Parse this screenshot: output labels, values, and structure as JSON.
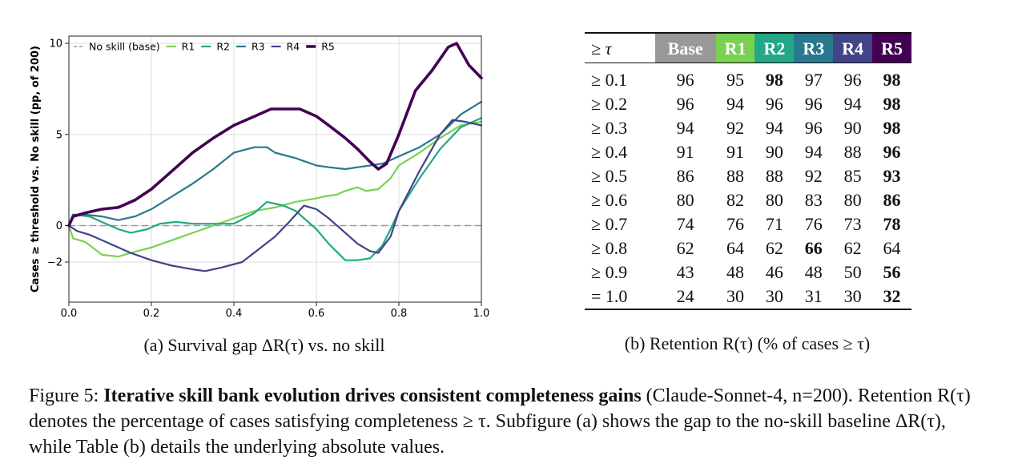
{
  "chart_data": {
    "type": "line",
    "title": "",
    "xlabel": "",
    "ylabel": "Cases ≥ threshold vs. No skill (pp, of 200)",
    "xlim": [
      0.0,
      1.0
    ],
    "ylim": [
      -4.2,
      10.4
    ],
    "xticks": [
      "0.0",
      "0.2",
      "0.4",
      "0.6",
      "0.8",
      "1.0"
    ],
    "xtick_values": [
      0.0,
      0.2,
      0.4,
      0.6,
      0.8,
      1.0
    ],
    "yticks": [
      "−2",
      "0",
      "5",
      "10"
    ],
    "ytick_values": [
      -2,
      0,
      5,
      10
    ],
    "grid": true,
    "legend_position": "top",
    "baseline": {
      "name": "No skill (base)",
      "value": 0,
      "color": "#999999"
    },
    "series": [
      {
        "name": "R1",
        "color": "#7ad151",
        "x": [
          0.0,
          0.01,
          0.04,
          0.08,
          0.12,
          0.15,
          0.2,
          0.25,
          0.3,
          0.35,
          0.4,
          0.45,
          0.5,
          0.55,
          0.6,
          0.62,
          0.65,
          0.67,
          0.7,
          0.72,
          0.75,
          0.78,
          0.8,
          0.85,
          0.9,
          0.95,
          1.0
        ],
        "y": [
          0.0,
          -0.7,
          -0.9,
          -1.6,
          -1.7,
          -1.5,
          -1.2,
          -0.8,
          -0.4,
          0.0,
          0.4,
          0.8,
          1.0,
          1.3,
          1.5,
          1.6,
          1.7,
          1.9,
          2.1,
          1.9,
          2.0,
          2.6,
          3.3,
          4.0,
          4.8,
          5.5,
          5.7
        ]
      },
      {
        "name": "R2",
        "color": "#22a884",
        "x": [
          0.0,
          0.01,
          0.05,
          0.09,
          0.12,
          0.15,
          0.19,
          0.22,
          0.26,
          0.3,
          0.35,
          0.4,
          0.45,
          0.48,
          0.52,
          0.55,
          0.6,
          0.63,
          0.67,
          0.7,
          0.73,
          0.76,
          0.78,
          0.8,
          0.85,
          0.9,
          0.95,
          1.0
        ],
        "y": [
          0.0,
          0.6,
          0.5,
          0.1,
          -0.2,
          -0.4,
          -0.2,
          0.1,
          0.2,
          0.1,
          0.1,
          0.1,
          0.7,
          1.3,
          1.1,
          0.8,
          -0.2,
          -1.0,
          -1.9,
          -1.9,
          -1.8,
          -1.1,
          -0.2,
          0.8,
          2.6,
          4.2,
          5.4,
          5.9
        ]
      },
      {
        "name": "R3",
        "color": "#2a788e",
        "x": [
          0.0,
          0.01,
          0.04,
          0.08,
          0.12,
          0.16,
          0.2,
          0.25,
          0.3,
          0.35,
          0.4,
          0.45,
          0.48,
          0.5,
          0.55,
          0.6,
          0.63,
          0.67,
          0.7,
          0.73,
          0.76,
          0.8,
          0.85,
          0.9,
          0.95,
          1.0
        ],
        "y": [
          0.0,
          0.6,
          0.6,
          0.5,
          0.3,
          0.5,
          0.9,
          1.6,
          2.3,
          3.1,
          4.0,
          4.3,
          4.3,
          4.0,
          3.7,
          3.3,
          3.2,
          3.1,
          3.2,
          3.3,
          3.4,
          3.8,
          4.3,
          5.0,
          6.1,
          6.8
        ]
      },
      {
        "name": "R4",
        "color": "#414487",
        "x": [
          0.0,
          0.02,
          0.05,
          0.1,
          0.15,
          0.2,
          0.25,
          0.3,
          0.33,
          0.37,
          0.42,
          0.46,
          0.5,
          0.53,
          0.57,
          0.6,
          0.63,
          0.67,
          0.7,
          0.73,
          0.75,
          0.78,
          0.8,
          0.85,
          0.9,
          0.93,
          0.96,
          1.0
        ],
        "y": [
          0.0,
          -0.3,
          -0.5,
          -1.0,
          -1.5,
          -1.9,
          -2.2,
          -2.4,
          -2.5,
          -2.3,
          -2.0,
          -1.3,
          -0.6,
          0.1,
          1.1,
          0.9,
          0.4,
          -0.4,
          -1.0,
          -1.4,
          -1.5,
          -0.6,
          0.8,
          3.0,
          5.0,
          5.8,
          5.7,
          5.5
        ]
      },
      {
        "name": "R5",
        "color": "#440154",
        "x": [
          0.0,
          0.01,
          0.04,
          0.08,
          0.12,
          0.16,
          0.2,
          0.25,
          0.3,
          0.35,
          0.4,
          0.45,
          0.49,
          0.52,
          0.56,
          0.6,
          0.63,
          0.67,
          0.7,
          0.73,
          0.75,
          0.77,
          0.8,
          0.84,
          0.88,
          0.92,
          0.94,
          0.97,
          1.0
        ],
        "y": [
          0.0,
          0.5,
          0.7,
          0.9,
          1.0,
          1.4,
          2.0,
          3.0,
          4.0,
          4.8,
          5.5,
          6.0,
          6.4,
          6.4,
          6.4,
          6.0,
          5.5,
          4.8,
          4.2,
          3.5,
          3.1,
          3.4,
          5.0,
          7.4,
          8.5,
          9.8,
          10.0,
          8.8,
          8.1
        ]
      }
    ]
  },
  "table": {
    "columns": [
      "≥ τ",
      "Base",
      "R1",
      "R2",
      "R3",
      "R4",
      "R5"
    ],
    "header_colors": [
      "#ffffff",
      "#999999",
      "#7ad151",
      "#22a884",
      "#2a788e",
      "#414487",
      "#440154"
    ],
    "rows": [
      {
        "tau": "≥ 0.1",
        "vals": [
          "96",
          "95",
          "98",
          "97",
          "96",
          "98"
        ],
        "bold": [
          2,
          5
        ]
      },
      {
        "tau": "≥ 0.2",
        "vals": [
          "96",
          "94",
          "96",
          "96",
          "94",
          "98"
        ],
        "bold": [
          5
        ]
      },
      {
        "tau": "≥ 0.3",
        "vals": [
          "94",
          "92",
          "94",
          "96",
          "90",
          "98"
        ],
        "bold": [
          5
        ]
      },
      {
        "tau": "≥ 0.4",
        "vals": [
          "91",
          "91",
          "90",
          "94",
          "88",
          "96"
        ],
        "bold": [
          5
        ]
      },
      {
        "tau": "≥ 0.5",
        "vals": [
          "86",
          "88",
          "88",
          "92",
          "85",
          "93"
        ],
        "bold": [
          5
        ]
      },
      {
        "tau": "≥ 0.6",
        "vals": [
          "80",
          "82",
          "80",
          "83",
          "80",
          "86"
        ],
        "bold": [
          5
        ]
      },
      {
        "tau": "≥ 0.7",
        "vals": [
          "74",
          "76",
          "71",
          "76",
          "73",
          "78"
        ],
        "bold": [
          5
        ]
      },
      {
        "tau": "≥ 0.8",
        "vals": [
          "62",
          "64",
          "62",
          "66",
          "62",
          "64"
        ],
        "bold": [
          3
        ]
      },
      {
        "tau": "≥ 0.9",
        "vals": [
          "43",
          "48",
          "46",
          "48",
          "50",
          "56"
        ],
        "bold": [
          5
        ]
      },
      {
        "tau": "= 1.0",
        "vals": [
          "24",
          "30",
          "30",
          "31",
          "30",
          "32"
        ],
        "bold": [
          5
        ]
      }
    ]
  },
  "captions": {
    "a": "(a) Survival gap ΔR(τ) vs. no skill",
    "b": "(b) Retention R(τ) (% of cases ≥ τ)"
  },
  "figure_caption": {
    "label": "Figure 5:",
    "bold": "Iterative skill bank evolution drives consistent completeness gains",
    "rest": "(Claude-Sonnet-4, n=200). Retention R(τ) denotes the percentage of cases satisfying completeness ≥ τ. Subfigure (a) shows the gap to the no-skill baseline ΔR(τ), while Table (b) details the underlying absolute values."
  }
}
